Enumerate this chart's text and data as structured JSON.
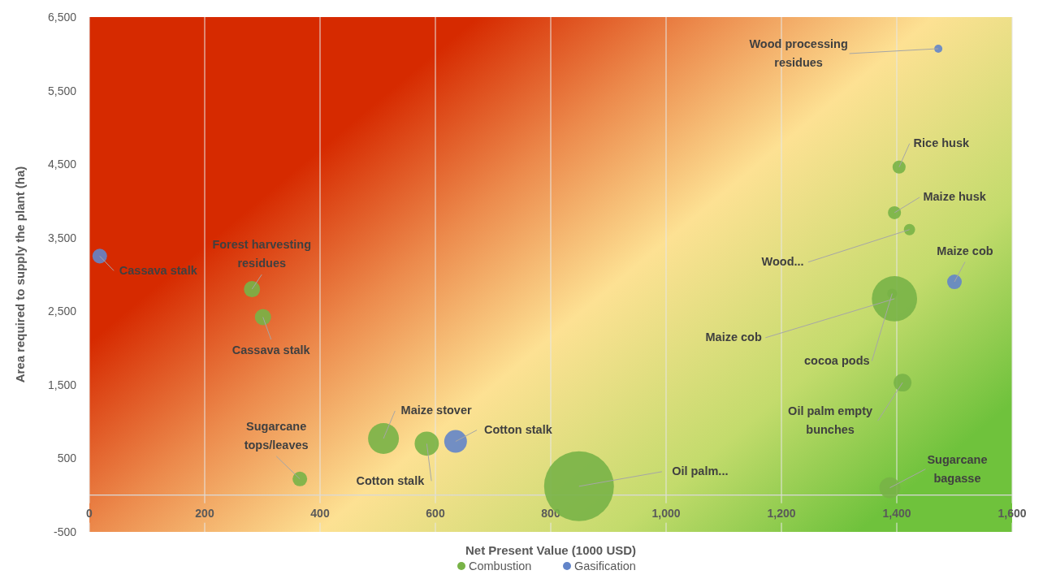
{
  "chart_data": {
    "type": "bubble",
    "xlabel": "Net Present Value (1000 USD)",
    "ylabel": "Area required to supply the plant (ha)",
    "xlim": [
      0,
      1600
    ],
    "xticks": [
      0,
      200,
      400,
      600,
      800,
      {
        "value": 1000,
        "label": "1,000"
      },
      {
        "value": 1200,
        "label": "1,200"
      },
      {
        "value": 1400,
        "label": "1,400"
      },
      {
        "value": 1600,
        "label": "1,600"
      }
    ],
    "ylim": [
      -500,
      6500
    ],
    "yticks": [
      -500,
      500,
      {
        "value": 1500,
        "label": "1,500"
      },
      {
        "value": 2500,
        "label": "2,500"
      },
      {
        "value": 3500,
        "label": "3,500"
      },
      {
        "value": 4500,
        "label": "4,500"
      },
      {
        "value": 5500,
        "label": "5,500"
      },
      {
        "value": 6500,
        "label": "6,500"
      }
    ],
    "grid": "x",
    "legend": "bottom",
    "series": [
      {
        "name": "Combustion",
        "color": "#78b347",
        "x": [
          282,
          301,
          365,
          510,
          585,
          849,
          1396,
          1392,
          1404,
          1396,
          1422,
          1410,
          1388
        ],
        "values": [
          2800,
          2420,
          220,
          770,
          700,
          120,
          2670,
          2740,
          4460,
          3840,
          3610,
          1530,
          100
        ],
        "sizes": [
          0.054,
          0.054,
          0.044,
          0.195,
          0.12,
          1,
          0.42,
          0.02,
          0.035,
          0.035,
          0.026,
          0.065,
          0.09
        ]
      },
      {
        "name": "Gasification",
        "color": "#6385c9",
        "x": [
          18,
          635,
          1500,
          1472
        ],
        "values": [
          3250,
          730,
          2900,
          6070
        ],
        "sizes": [
          0.044,
          0.106,
          0.044,
          0.0135
        ]
      }
    ],
    "annotations": [
      {
        "text": "Forest harvesting residues",
        "x": 282,
        "y": 2800
      },
      {
        "text": "Cassava stalk",
        "x": 301,
        "y": 2420
      },
      {
        "text": "Sugarcane tops/leaves",
        "x": 365,
        "y": 220
      },
      {
        "text": "Maize stover",
        "x": 510,
        "y": 770
      },
      {
        "text": "Cotton stalk",
        "x": 585,
        "y": 700
      },
      {
        "text": "Oil palm...",
        "x": 849,
        "y": 120
      },
      {
        "text": "Maize cob",
        "x": 1396,
        "y": 2670
      },
      {
        "text": "cocoa pods",
        "x": 1392,
        "y": 2740
      },
      {
        "text": "Rice husk",
        "x": 1404,
        "y": 4460
      },
      {
        "text": "Maize husk",
        "x": 1396,
        "y": 3840
      },
      {
        "text": "Wood...",
        "x": 1422,
        "y": 3610
      },
      {
        "text": "Oil palm empty bunches",
        "x": 1410,
        "y": 1530
      },
      {
        "text": "Sugarcane bagasse",
        "x": 1388,
        "y": 100
      },
      {
        "text": "Cassava stalk",
        "x": 18,
        "y": 3250
      },
      {
        "text": "Cotton stalk",
        "x": 635,
        "y": 730
      },
      {
        "text": "Maize cob",
        "x": 1500,
        "y": 2900
      },
      {
        "text": "Wood processing residues",
        "x": 1472,
        "y": 6070
      }
    ]
  }
}
